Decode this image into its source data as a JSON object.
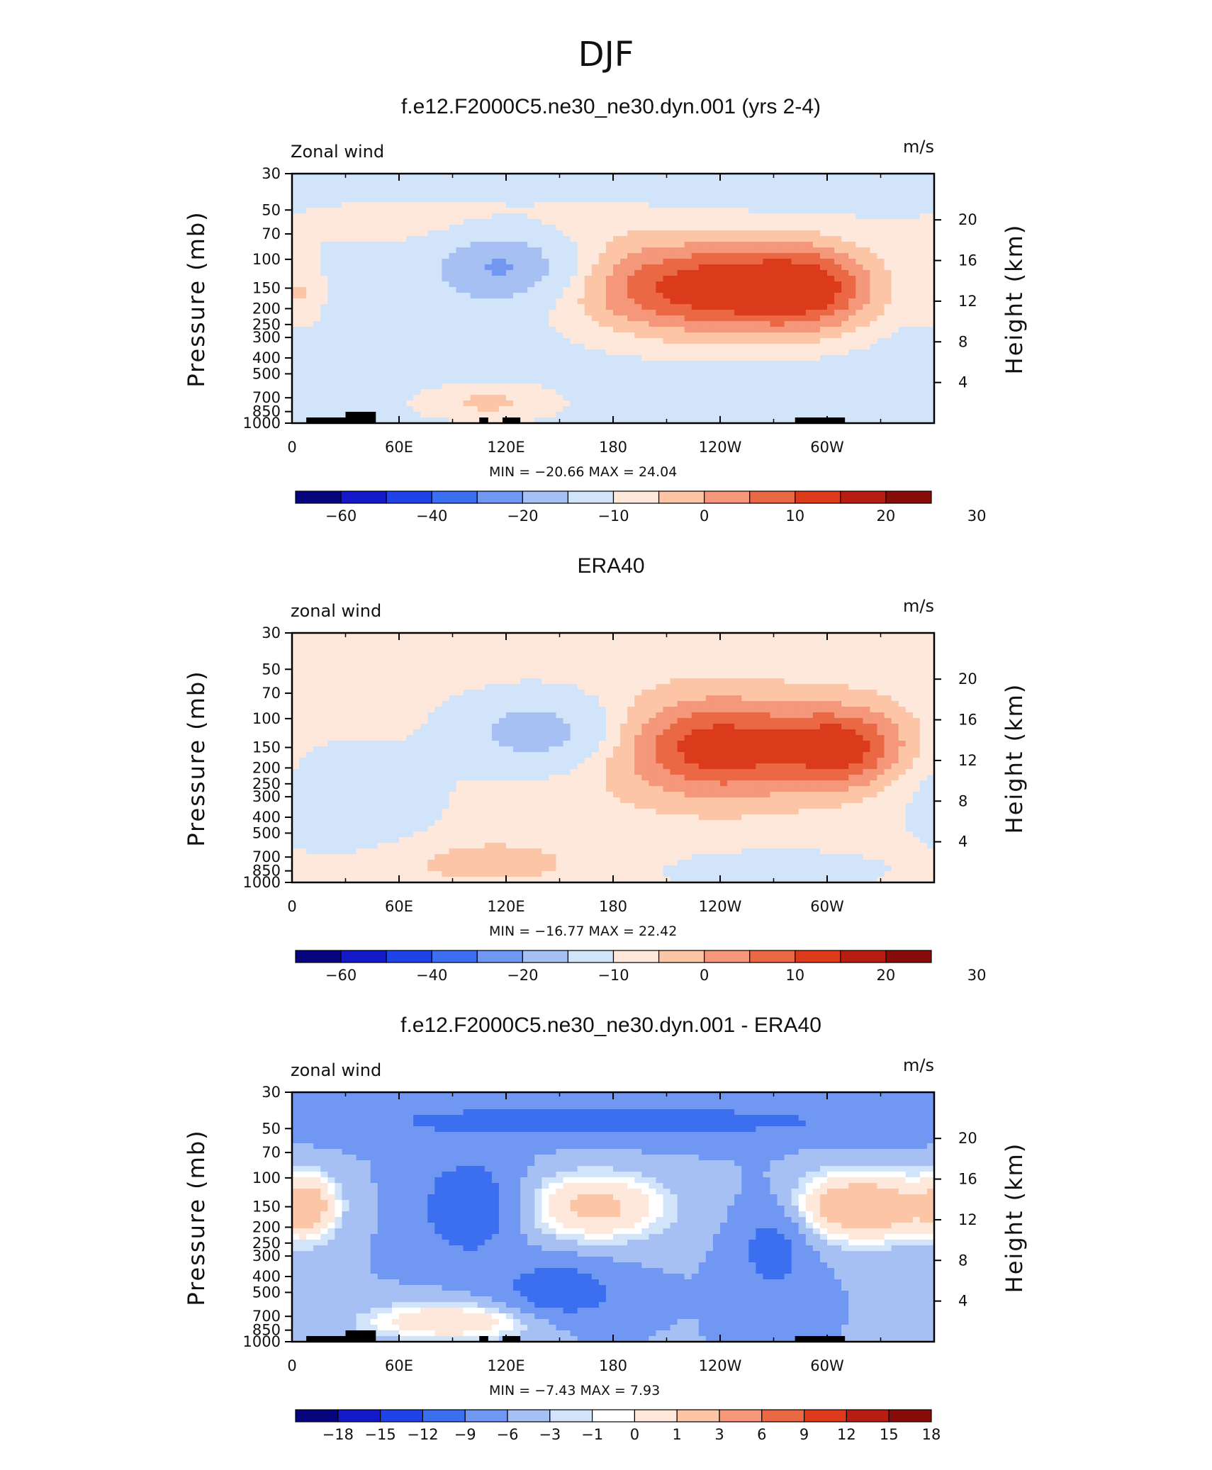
{
  "figure": {
    "title": "DJF"
  },
  "colors": {
    "model_scale": [
      "#08047e",
      "#1319c6",
      "#1e44e8",
      "#3b6fef",
      "#7098f3",
      "#a6c0f4",
      "#d2e4f9",
      "#fde8db",
      "#fbc5a6",
      "#f5977a",
      "#ea6844",
      "#db3b1a",
      "#b81d12",
      "#860d0c"
    ],
    "diff_scale": [
      "#08047e",
      "#1319c6",
      "#1e44e8",
      "#3b6fef",
      "#7098f3",
      "#a6c0f4",
      "#d2e4f9",
      "#ffffff",
      "#fde8db",
      "#fbc5a6",
      "#f5977a",
      "#ea6844",
      "#db3b1a",
      "#b81d12",
      "#860d0c"
    ],
    "topography": "#000000"
  },
  "chart_data": [
    {
      "type": "heatmap",
      "title": "f.e12.F2000C5.ne30_ne30.dyn.001 (yrs 2-4)",
      "variable_label": "Zonal wind",
      "units_label": "m/s",
      "ylabel": "Pressure  (mb)",
      "ylabel_right": "Height  (km)",
      "x_ticks": [
        "0",
        "60E",
        "120E",
        "180",
        "120W",
        "60W"
      ],
      "y_ticks": [
        "30",
        "50",
        "70",
        "100",
        "150",
        "200",
        "250",
        "300",
        "400",
        "500",
        "700",
        "850",
        "1000"
      ],
      "y_right_ticks": [
        "20",
        "16",
        "12",
        "8",
        "4"
      ],
      "stats_text": "MIN =  −20.66   MAX =   24.04",
      "min": -20.66,
      "max": 24.04,
      "colorbar_labels": [
        "−60",
        "−40",
        "−20",
        "−10",
        "0",
        "10",
        "20",
        "30"
      ],
      "background_value": -3,
      "features": [
        {
          "lon": 225,
          "p": 150,
          "value": 24,
          "spread_lon": 48,
          "spread_logp": 0.5
        },
        {
          "lon": 291,
          "p": 150,
          "value": 19,
          "spread_lon": 30,
          "spread_logp": 0.45
        },
        {
          "lon": 118,
          "p": 110,
          "value": -21,
          "spread_lon": 26,
          "spread_logp": 0.35
        },
        {
          "lon": 90,
          "p": 60,
          "value": 5,
          "spread_lon": 80,
          "spread_logp": 0.3
        },
        {
          "lon": 110,
          "p": 750,
          "value": 8,
          "spread_lon": 30,
          "spread_logp": 0.2
        },
        {
          "lon": 5,
          "p": 160,
          "value": 6,
          "spread_lon": 10,
          "spread_logp": 0.35
        }
      ]
    },
    {
      "type": "heatmap",
      "title": "ERA40",
      "variable_label": "zonal wind",
      "units_label": "m/s",
      "ylabel": "Pressure  (mb)",
      "ylabel_right": "Height  (km)",
      "x_ticks": [
        "0",
        "60E",
        "120E",
        "180",
        "120W",
        "60W"
      ],
      "y_ticks": [
        "30",
        "50",
        "70",
        "100",
        "150",
        "200",
        "250",
        "300",
        "400",
        "500",
        "700",
        "850",
        "1000"
      ],
      "y_right_ticks": [
        "20",
        "16",
        "12",
        "8",
        "4"
      ],
      "stats_text": "MIN =  −16.77   MAX =   22.42",
      "min": -16.77,
      "max": 22.42,
      "colorbar_labels": [
        "−60",
        "−40",
        "−20",
        "−10",
        "0",
        "10",
        "20",
        "30"
      ],
      "background_value": 2,
      "features": [
        {
          "lon": 240,
          "p": 150,
          "value": 22,
          "spread_lon": 42,
          "spread_logp": 0.5
        },
        {
          "lon": 312,
          "p": 150,
          "value": 18,
          "spread_lon": 24,
          "spread_logp": 0.4
        },
        {
          "lon": 138,
          "p": 120,
          "value": -17,
          "spread_lon": 30,
          "spread_logp": 0.35
        },
        {
          "lon": 30,
          "p": 300,
          "value": -7,
          "spread_lon": 35,
          "spread_logp": 0.5
        },
        {
          "lon": 110,
          "p": 750,
          "value": 7,
          "spread_lon": 32,
          "spread_logp": 0.2
        },
        {
          "lon": 270,
          "p": 850,
          "value": -6,
          "spread_lon": 40,
          "spread_logp": 0.2
        }
      ]
    },
    {
      "type": "heatmap",
      "title": "f.e12.F2000C5.ne30_ne30.dyn.001 - ERA40",
      "variable_label": "zonal wind",
      "units_label": "m/s",
      "ylabel": "Pressure  (mb)",
      "ylabel_right": "Height  (km)",
      "x_ticks": [
        "0",
        "60E",
        "120E",
        "180",
        "120W",
        "60W"
      ],
      "y_ticks": [
        "30",
        "50",
        "70",
        "100",
        "150",
        "200",
        "250",
        "300",
        "400",
        "500",
        "700",
        "850",
        "1000"
      ],
      "y_right_ticks": [
        "20",
        "16",
        "12",
        "8",
        "4"
      ],
      "stats_text": "MIN =   −7.43   MAX =    7.93",
      "min": -7.43,
      "max": 7.93,
      "colorbar_labels": [
        "−18",
        "−15",
        "−12",
        "−9",
        "−6",
        "−3",
        "−1",
        "0",
        "1",
        "3",
        "6",
        "9",
        "12",
        "15",
        "18"
      ],
      "background_value": -3,
      "features": [
        {
          "lon": 180,
          "p": 45,
          "value": -5,
          "spread_lon": 140,
          "spread_logp": 0.2
        },
        {
          "lon": 170,
          "p": 150,
          "value": 6,
          "spread_lon": 30,
          "spread_logp": 0.35
        },
        {
          "lon": 320,
          "p": 150,
          "value": 8,
          "spread_lon": 30,
          "spread_logp": 0.35
        },
        {
          "lon": 10,
          "p": 150,
          "value": 5,
          "spread_lon": 12,
          "spread_logp": 0.35
        },
        {
          "lon": 100,
          "p": 150,
          "value": -7,
          "spread_lon": 20,
          "spread_logp": 0.5
        },
        {
          "lon": 150,
          "p": 500,
          "value": -7,
          "spread_lon": 22,
          "spread_logp": 0.3
        },
        {
          "lon": 270,
          "p": 250,
          "value": -6,
          "spread_lon": 14,
          "spread_logp": 0.5
        },
        {
          "lon": 90,
          "p": 750,
          "value": 5,
          "spread_lon": 38,
          "spread_logp": 0.2
        }
      ]
    }
  ]
}
